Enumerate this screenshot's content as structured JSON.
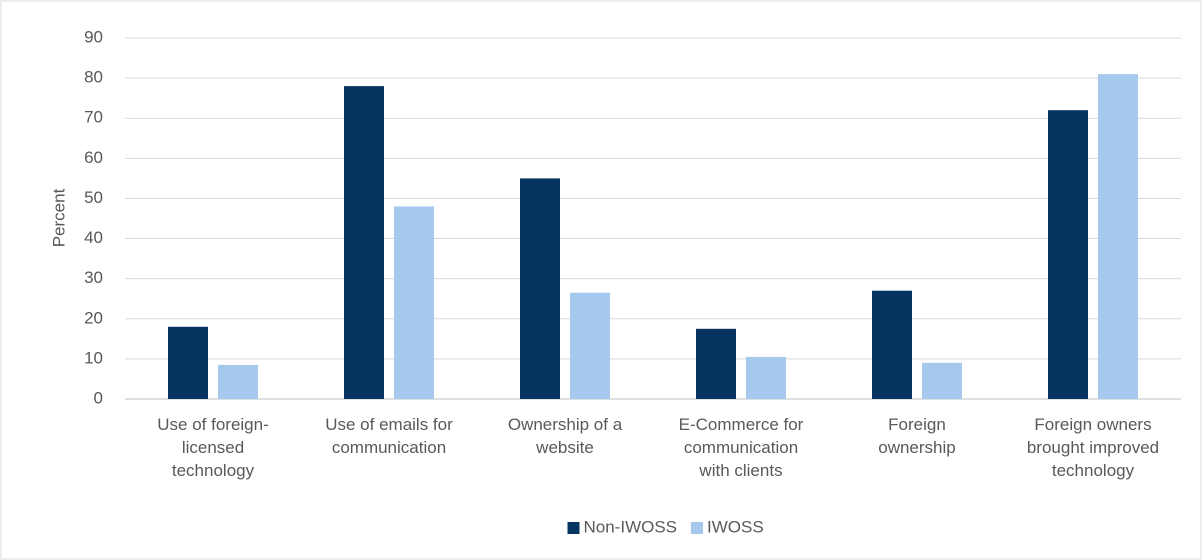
{
  "chart_data": {
    "type": "bar",
    "y_label": "Percent",
    "categories": [
      "Use of foreign-\nlicensed\ntechnology",
      "Use of emails for\ncommunication",
      "Ownership of a\nwebsite",
      "E-Commerce for\ncommunication\nwith clients",
      "Foreign\nownership",
      "Foreign owners\nbrought improved\ntechnology"
    ],
    "series": [
      {
        "name": "Non-IWOSS",
        "color": "#06335f",
        "values": [
          18,
          78,
          55,
          17.5,
          27,
          72
        ]
      },
      {
        "name": "IWOSS",
        "color": "#a6c8ee",
        "values": [
          8.5,
          48,
          26.5,
          10.5,
          9,
          81
        ]
      }
    ],
    "ylim": [
      0,
      90
    ],
    "yticks": [
      0,
      10,
      20,
      30,
      40,
      50,
      60,
      70,
      80,
      90
    ],
    "grid": true,
    "legend": "bottom"
  }
}
